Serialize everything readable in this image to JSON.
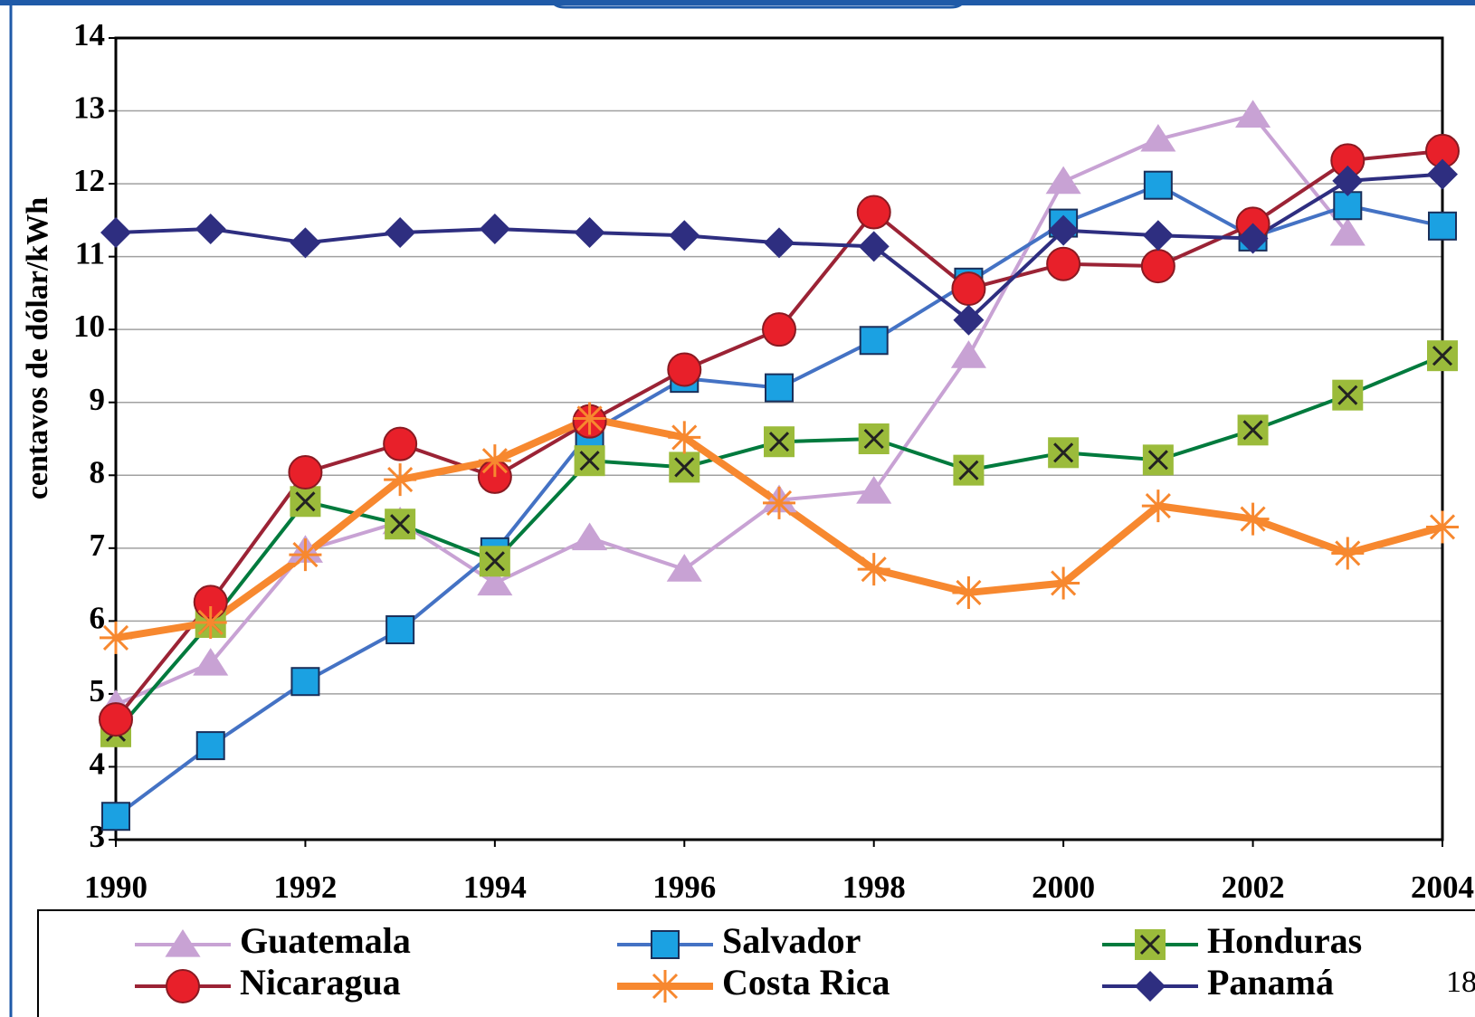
{
  "chart_data": {
    "type": "line",
    "y_label": "centavos de dólar/kWh",
    "x": [
      1990,
      1991,
      1992,
      1993,
      1994,
      1995,
      1996,
      1997,
      1998,
      1999,
      2000,
      2001,
      2002,
      2003,
      2004
    ],
    "xlim": [
      1990,
      2004
    ],
    "xticks": [
      1990,
      1992,
      1994,
      1996,
      1998,
      2000,
      2002,
      2004
    ],
    "ylim": [
      3,
      14
    ],
    "yticks": [
      3,
      4,
      5,
      6,
      7,
      8,
      9,
      10,
      11,
      12,
      13,
      14
    ],
    "grid": true,
    "legend": "bottom",
    "series": [
      {
        "name": "Guatemala",
        "color": "#c8a2d4",
        "marker": "triangle",
        "marker_color": "#c8a2d4",
        "line_width": 4,
        "values": [
          4.85,
          5.42,
          6.97,
          7.36,
          6.52,
          7.14,
          6.71,
          7.66,
          7.78,
          9.64,
          12.03,
          12.61,
          12.94,
          11.32,
          null
        ]
      },
      {
        "name": "Salvador",
        "color": "#4472c4",
        "marker": "square",
        "marker_color": "#1ba1e2",
        "line_width": 4,
        "values": [
          3.32,
          4.29,
          5.17,
          5.88,
          6.95,
          8.58,
          9.33,
          9.2,
          9.85,
          10.65,
          11.46,
          11.98,
          11.27,
          11.7,
          11.42
        ]
      },
      {
        "name": "Honduras",
        "color": "#007a3d",
        "marker": "xsquare",
        "marker_color": "#9bbb3b",
        "line_width": 4,
        "values": [
          4.48,
          5.98,
          7.64,
          7.33,
          6.82,
          8.2,
          8.11,
          8.46,
          8.5,
          8.07,
          8.31,
          8.21,
          8.62,
          9.1,
          9.64
        ]
      },
      {
        "name": "Nicaragua",
        "color": "#9b2335",
        "marker": "circle",
        "marker_color": "#e8202a",
        "line_width": 4,
        "values": [
          4.65,
          6.26,
          8.04,
          8.43,
          7.98,
          8.74,
          9.45,
          10.0,
          11.61,
          10.56,
          10.9,
          10.87,
          11.45,
          12.32,
          12.45
        ]
      },
      {
        "name": "Costa Rica",
        "color": "#f7882f",
        "marker": "star",
        "marker_color": "#f7882f",
        "line_width": 8,
        "values": [
          5.77,
          5.98,
          6.91,
          7.94,
          8.2,
          8.78,
          8.52,
          7.62,
          6.71,
          6.39,
          6.52,
          7.58,
          7.4,
          6.93,
          7.29
        ]
      },
      {
        "name": "Panamá",
        "color": "#2e2e80",
        "marker": "diamond",
        "marker_color": "#2e2e80",
        "line_width": 4,
        "values": [
          11.33,
          11.38,
          11.19,
          11.33,
          11.38,
          11.33,
          11.29,
          11.19,
          11.14,
          10.13,
          11.36,
          11.29,
          11.25,
          12.04,
          12.13
        ]
      }
    ]
  },
  "page_number": "18"
}
